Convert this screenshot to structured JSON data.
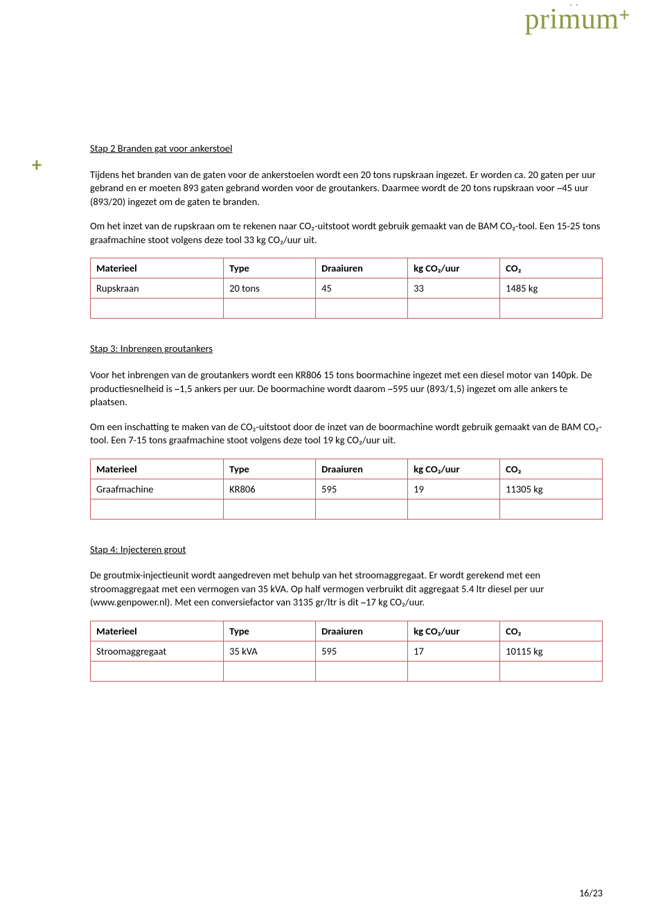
{
  "logo_text": "primum",
  "logo_plus": "+",
  "side_plus": "+",
  "sections": [
    {
      "heading": "Stap 2 Branden gat voor ankerstoel",
      "paragraphs": [
        "Tijdens het branden van de gaten voor de ankerstoelen wordt een 20 tons rupskraan ingezet. Er worden ca. 20 gaten per uur gebrand en er moeten 893 gaten gebrand worden voor de groutankers. Daarmee wordt de 20 tons rupskraan voor ~45 uur (893/20) ingezet om de gaten te branden.",
        "Om het inzet van de rupskraan om te rekenen naar CO₂-uitstoot wordt gebruik gemaakt van de BAM CO₂-tool. Een 15-25 tons graafmachine stoot volgens deze tool 33 kg CO₂/uur uit."
      ],
      "table": {
        "headers": [
          "Materieel",
          "Type",
          "Draaiuren",
          "kg CO₂/uur",
          "CO₂"
        ],
        "rows": [
          [
            "Rupskraan",
            "20 tons",
            "45",
            "33",
            "1485 kg"
          ],
          [
            "",
            "",
            "",
            "",
            ""
          ]
        ]
      }
    },
    {
      "heading": "Stap 3: Inbrengen groutankers",
      "paragraphs": [
        "Voor het inbrengen van de groutankers wordt een KR806 15 tons boormachine ingezet met een diesel motor van 140pk. De productiesnelheid is ~1,5 ankers per uur. De boormachine wordt daarom ~595 uur (893/1,5) ingezet om alle ankers te plaatsen.",
        "Om een inschatting te maken van de CO₂-uitstoot door de inzet van de boormachine wordt gebruik gemaakt van de BAM CO₂-tool. Een 7-15 tons graafmachine stoot volgens deze tool 19 kg CO₂/uur uit."
      ],
      "table": {
        "headers": [
          "Materieel",
          "Type",
          "Draaiuren",
          "kg CO₂/uur",
          "CO₂"
        ],
        "rows": [
          [
            "Graafmachine",
            "KR806",
            "595",
            "19",
            "11305 kg"
          ],
          [
            "",
            "",
            "",
            "",
            ""
          ]
        ]
      }
    },
    {
      "heading": "Stap 4: Injecteren grout",
      "paragraphs": [
        "De groutmix-injectieunit wordt aangedreven met behulp van het stroomaggregaat. Er wordt gerekend met een stroomaggregaat met een vermogen van 35 kVA. Op half vermogen verbruikt dit aggregaat 5.4 ltr diesel per uur (www.genpower.nl). Met een conversiefactor van 3135 gr/ltr is dit ~17 kg CO₂/uur."
      ],
      "table": {
        "headers": [
          "Materieel",
          "Type",
          "Draaiuren",
          "kg CO₂/uur",
          "CO₂"
        ],
        "rows": [
          [
            "Stroomaggregaat",
            "35 kVA",
            "595",
            "17",
            "10115 kg"
          ],
          [
            "",
            "",
            "",
            "",
            ""
          ]
        ]
      }
    }
  ],
  "page_number": "16/23",
  "table_border_color": "#c75b5b",
  "accent_color": "#8a9a45"
}
